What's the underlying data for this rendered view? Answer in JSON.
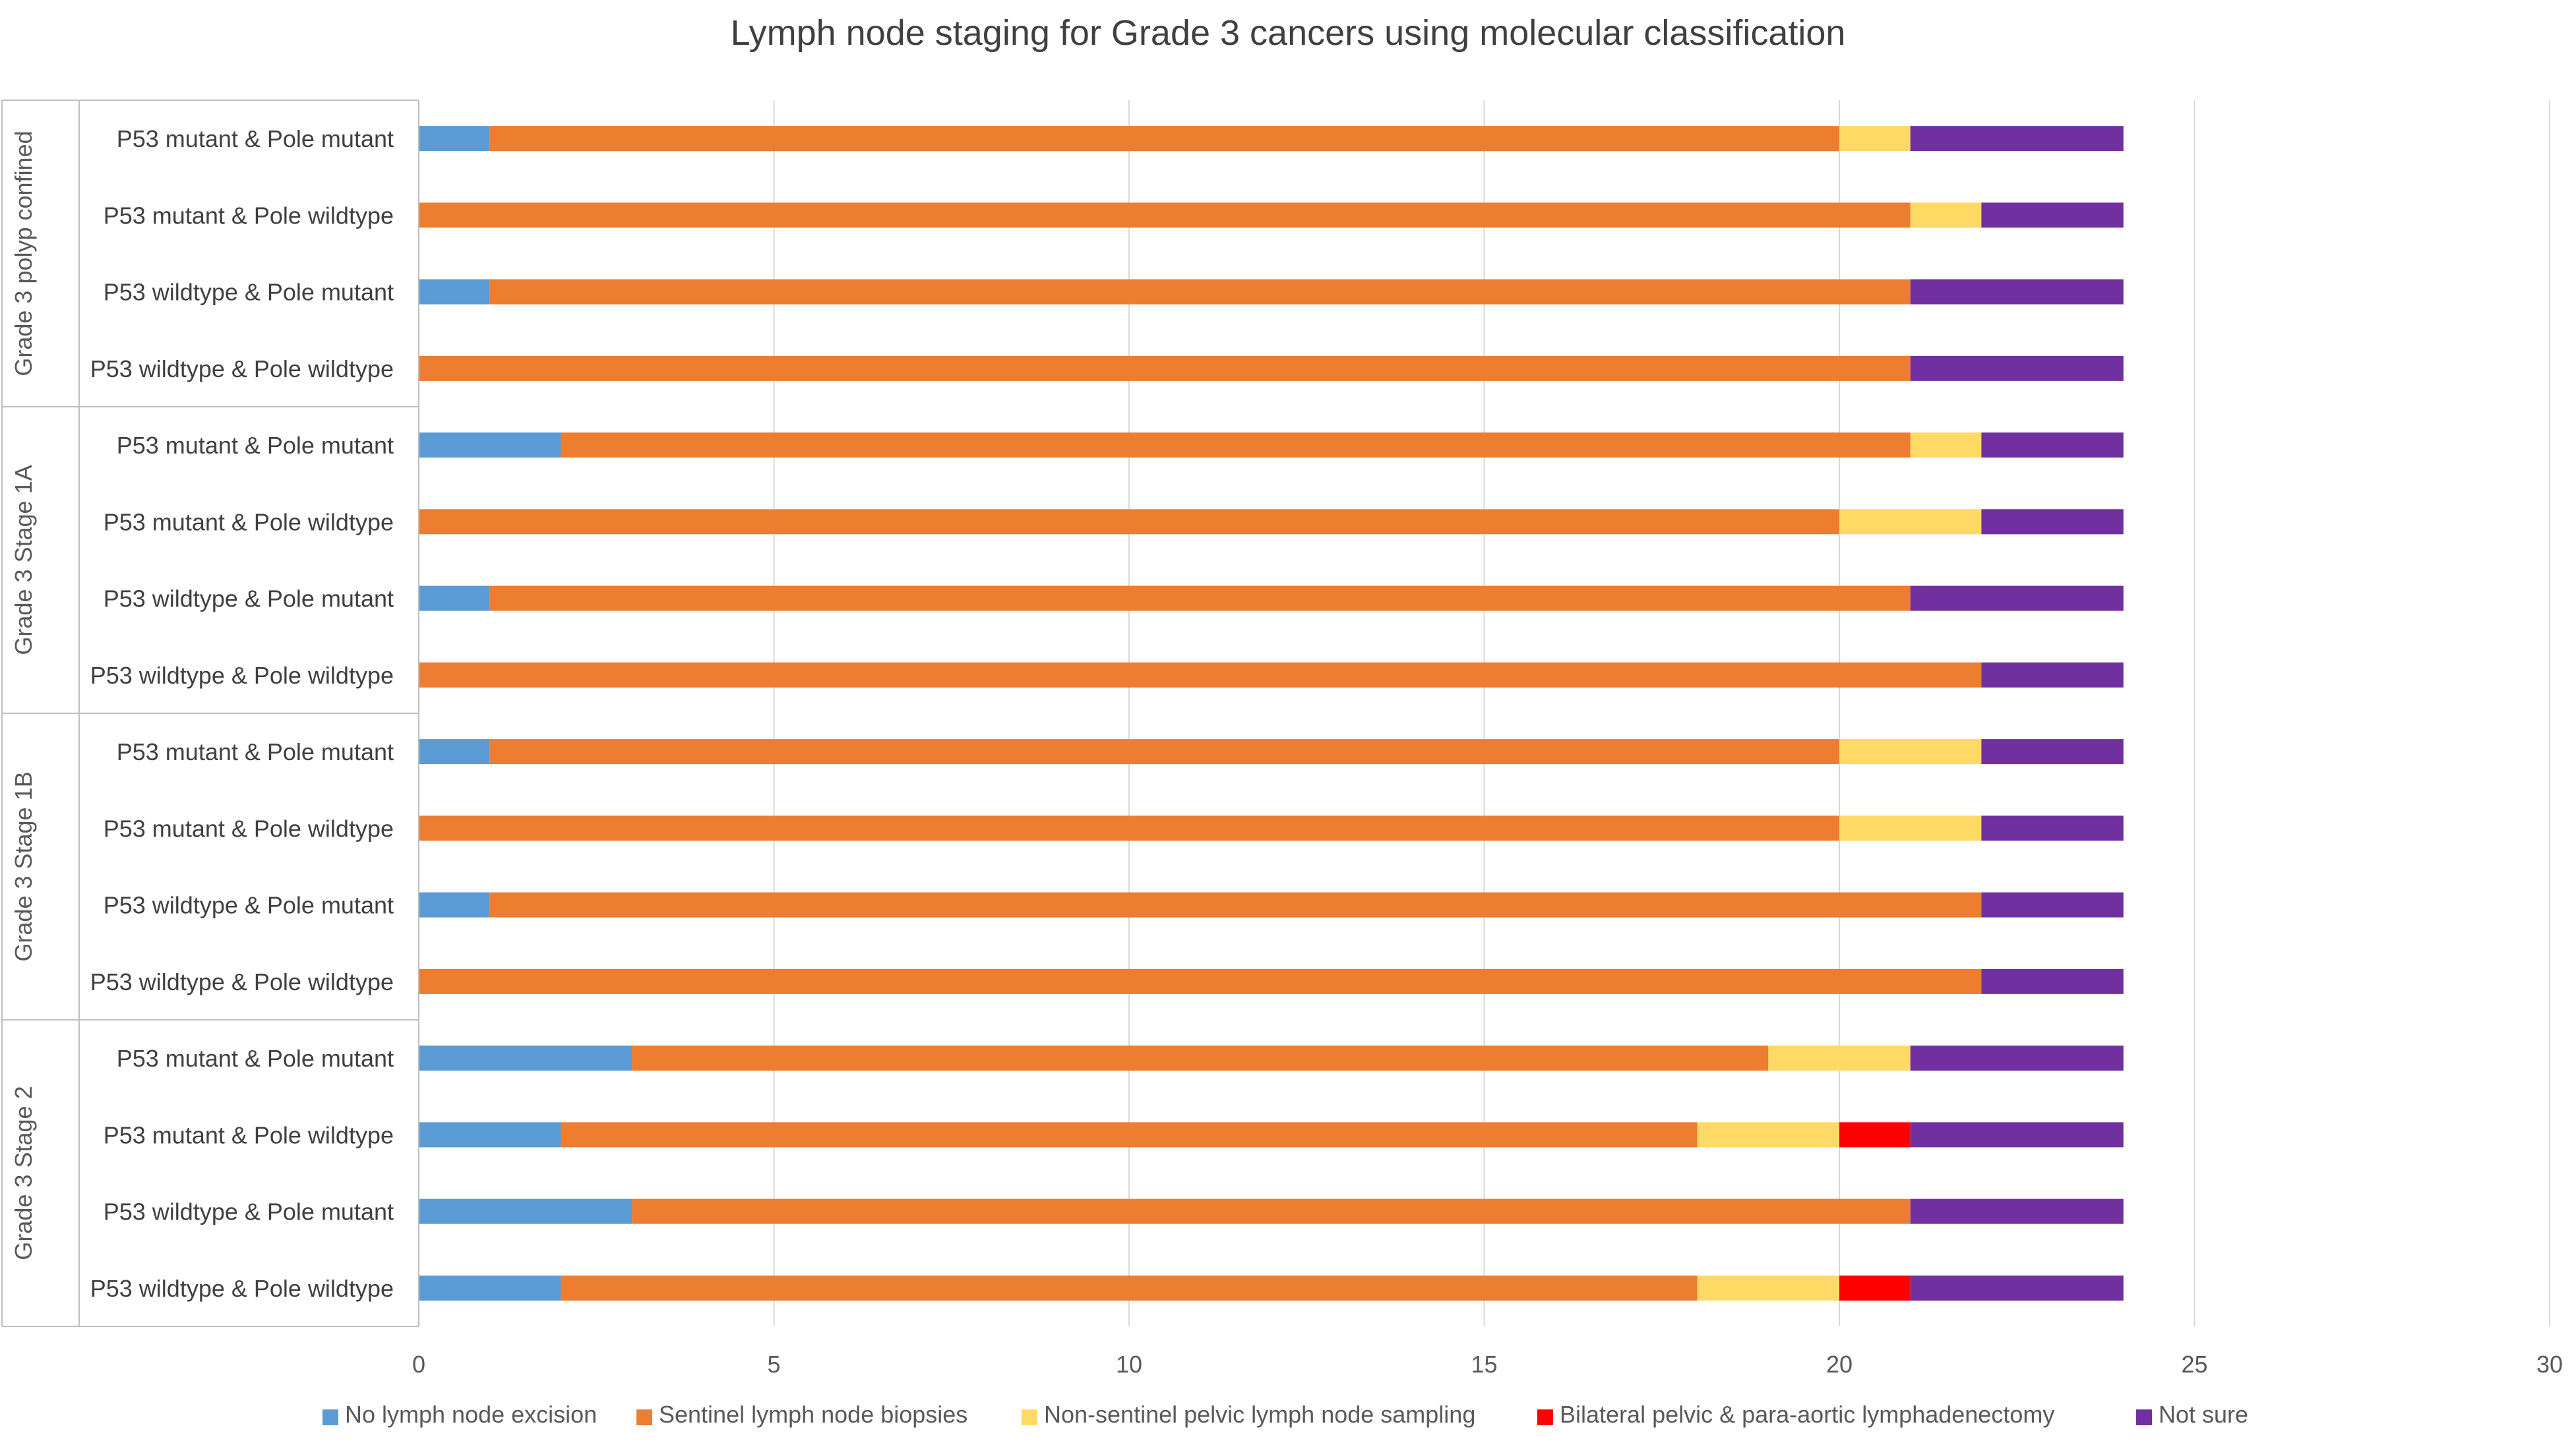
{
  "chart_data": {
    "type": "bar",
    "orientation": "horizontal",
    "stacked": true,
    "title": "Lymph node staging for Grade 3 cancers using molecular classification",
    "xlim": [
      0,
      30
    ],
    "xticks": [
      0,
      5,
      10,
      15,
      20,
      25,
      30
    ],
    "grid": true,
    "legend_position": "bottom",
    "groups": [
      {
        "label": "Grade 3 polyp confined",
        "categories": [
          "P53 mutant & Pole mutant",
          "P53 mutant & Pole wildtype",
          "P53 wildtype & Pole mutant",
          "P53 wildtype & Pole wildtype"
        ]
      },
      {
        "label": "Grade 3 Stage 1A",
        "categories": [
          "P53 mutant & Pole mutant",
          "P53 mutant & Pole wildtype",
          "P53 wildtype & Pole mutant",
          "P53 wildtype & Pole wildtype"
        ]
      },
      {
        "label": "Grade 3 Stage 1B",
        "categories": [
          "P53 mutant & Pole mutant",
          "P53 mutant & Pole wildtype",
          "P53 wildtype & Pole mutant",
          "P53 wildtype & Pole wildtype"
        ]
      },
      {
        "label": "Grade 3 Stage 2",
        "categories": [
          "P53 mutant & Pole mutant",
          "P53 mutant & Pole wildtype",
          "P53 wildtype & Pole mutant",
          "P53 wildtype & Pole wildtype"
        ]
      }
    ],
    "series": [
      {
        "name": "No lymph node excision",
        "color": "#5b9bd5",
        "values": [
          1,
          0,
          1,
          0,
          2,
          0,
          1,
          0,
          1,
          0,
          1,
          0,
          3,
          2,
          3,
          2
        ]
      },
      {
        "name": "Sentinel lymph node biopsies",
        "color": "#ed7d31",
        "values": [
          19,
          21,
          20,
          21,
          19,
          20,
          20,
          22,
          19,
          20,
          21,
          22,
          16,
          16,
          18,
          16
        ]
      },
      {
        "name": "Non-sentinel pelvic lymph node sampling",
        "color": "#ffd966",
        "values": [
          1,
          1,
          0,
          0,
          1,
          2,
          0,
          0,
          2,
          2,
          0,
          0,
          2,
          2,
          0,
          2
        ]
      },
      {
        "name": "Bilateral pelvic & para-aortic lymphadenectomy",
        "color": "#ff0000",
        "values": [
          0,
          0,
          0,
          0,
          0,
          0,
          0,
          0,
          0,
          0,
          0,
          0,
          0,
          1,
          0,
          1
        ]
      },
      {
        "name": "Not sure",
        "color": "#7030a0",
        "values": [
          3,
          2,
          3,
          3,
          2,
          2,
          3,
          2,
          2,
          2,
          2,
          2,
          3,
          3,
          3,
          3
        ]
      }
    ]
  }
}
